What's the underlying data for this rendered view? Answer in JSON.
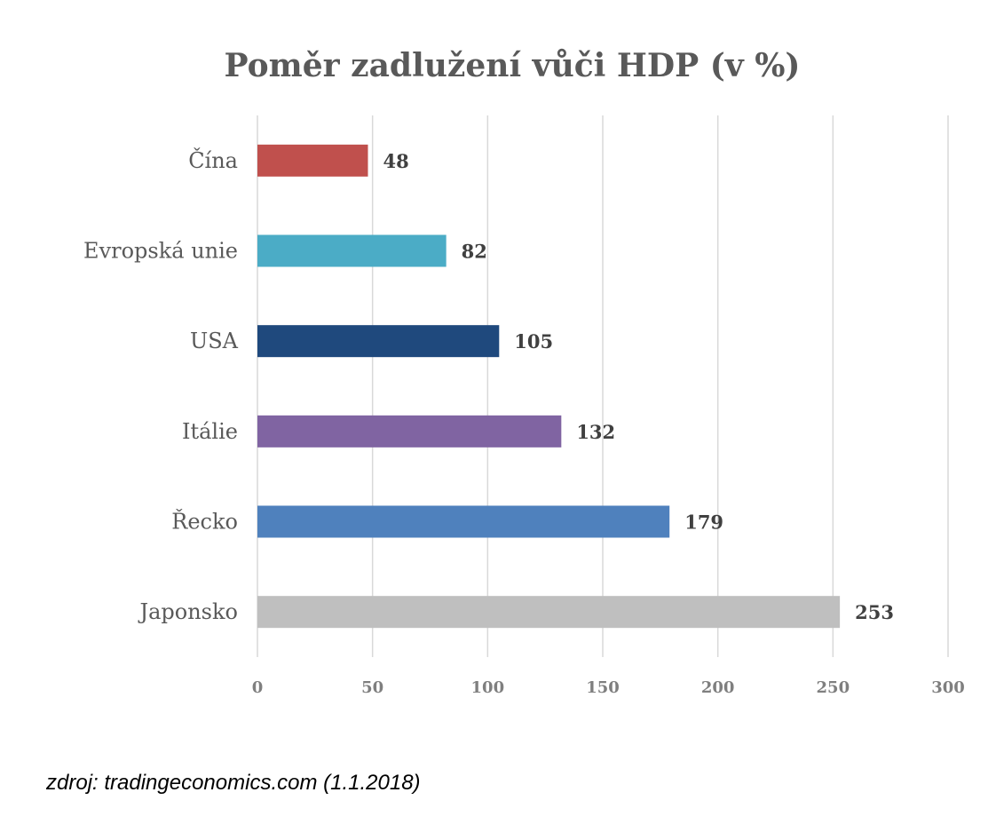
{
  "chart_data": {
    "type": "bar",
    "orientation": "horizontal",
    "title": "Poměr zadlužení vůči HDP (v %)",
    "categories": [
      "Čína",
      "Evropská unie",
      "USA",
      "Itálie",
      "Řecko",
      "Japonsko"
    ],
    "values": [
      48,
      82,
      105,
      132,
      179,
      253
    ],
    "value_labels": [
      "48",
      "82",
      "105",
      "132",
      "179",
      "253"
    ],
    "colors": [
      "#c0504d",
      "#4bacc6",
      "#1f497d",
      "#8064a2",
      "#4f81bd",
      "#bfbfbf"
    ],
    "xlim": [
      0,
      300
    ],
    "xticks": [
      "0",
      "50",
      "100",
      "150",
      "200",
      "250",
      "300"
    ],
    "xlabel": "",
    "ylabel": "",
    "grid": true,
    "legend": "none"
  },
  "source": "zdroj: tradingeconomics.com (1.1.2018)"
}
